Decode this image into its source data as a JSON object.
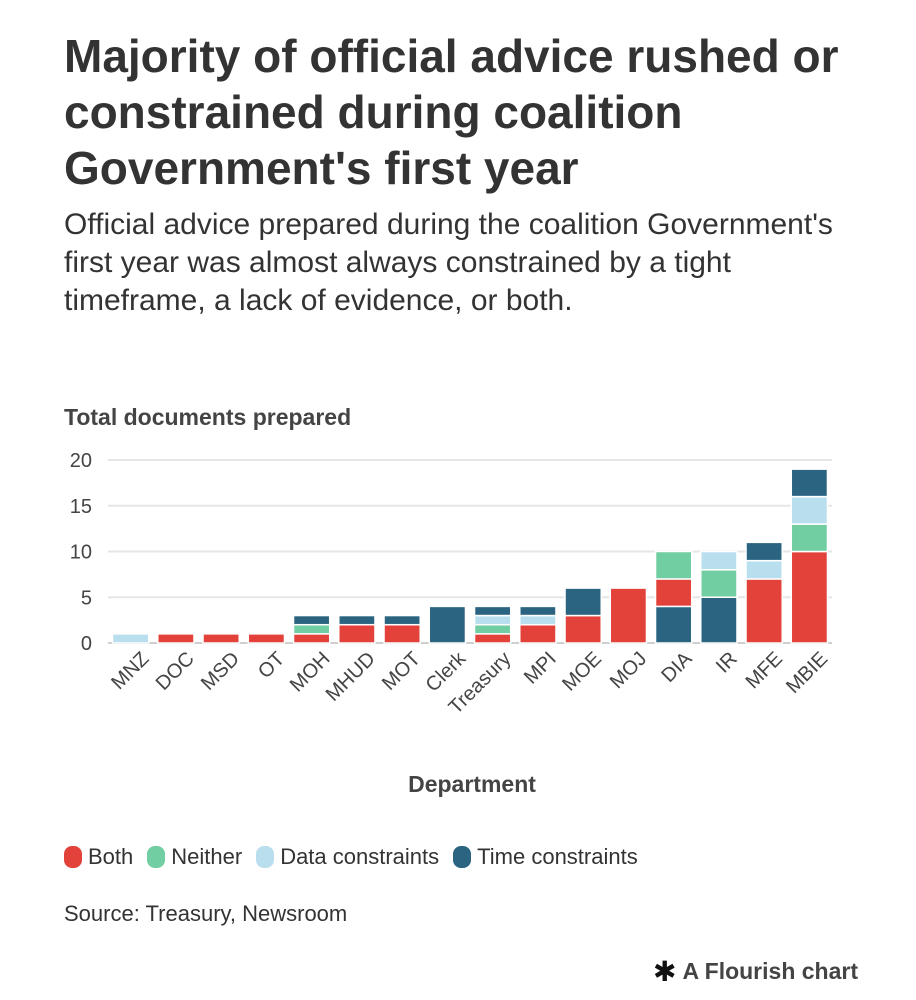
{
  "title": "Majority of official advice rushed or constrained during coalition Government's first year",
  "subtitle": "Official advice prepared during the coalition Government's first year was almost always constrained by a tight timeframe, a lack of evidence, or both.",
  "source": "Source: Treasury, Newsroom",
  "credit": {
    "icon": "flourish-asterisk-icon",
    "text": "A Flourish chart"
  },
  "colors": {
    "Both": "#e3423a",
    "Neither": "#70cea2",
    "Data constraints": "#b9dfef",
    "Time constraints": "#2b6481"
  },
  "chart_data": {
    "type": "bar",
    "stacked": true,
    "title": "Majority of official advice rushed or constrained during coalition Government's first year",
    "ylabel": "Total documents prepared",
    "xlabel": "Department",
    "ylim": [
      0,
      20
    ],
    "yticks": [
      0,
      5,
      10,
      15,
      20
    ],
    "grid": true,
    "legend": "bottom",
    "categories": [
      "MNZ",
      "DOC",
      "MSD",
      "OT",
      "MOH",
      "MHUD",
      "MOT",
      "Clerk",
      "Treasury",
      "MPI",
      "MOE",
      "MOJ",
      "DIA",
      "IR",
      "MFE",
      "MBIE"
    ],
    "series": [
      {
        "name": "Both",
        "values": [
          0,
          1,
          1,
          1,
          1,
          2,
          2,
          0,
          1,
          2,
          3,
          6,
          3,
          0,
          7,
          10
        ]
      },
      {
        "name": "Neither",
        "values": [
          0,
          0,
          0,
          0,
          1,
          0,
          0,
          0,
          1,
          0,
          0,
          0,
          3,
          3,
          0,
          3
        ]
      },
      {
        "name": "Data constraints",
        "values": [
          1,
          0,
          0,
          0,
          0,
          0,
          0,
          0,
          1,
          1,
          0,
          0,
          0,
          2,
          2,
          3
        ]
      },
      {
        "name": "Time constraints",
        "values": [
          0,
          0,
          0,
          0,
          1,
          1,
          1,
          4,
          1,
          1,
          3,
          0,
          4,
          5,
          2,
          3
        ]
      }
    ],
    "stack_order": [
      [
        "Data constraints"
      ],
      [
        "Both"
      ],
      [
        "Both"
      ],
      [
        "Both"
      ],
      [
        "Both",
        "Neither",
        "Time constraints"
      ],
      [
        "Both",
        "Time constraints"
      ],
      [
        "Both",
        "Time constraints"
      ],
      [
        "Time constraints"
      ],
      [
        "Both",
        "Neither",
        "Data constraints",
        "Time constraints"
      ],
      [
        "Both",
        "Data constraints",
        "Time constraints"
      ],
      [
        "Both",
        "Time constraints"
      ],
      [
        "Both"
      ],
      [
        "Time constraints",
        "Both",
        "Neither"
      ],
      [
        "Time constraints",
        "Neither",
        "Data constraints",
        "Both"
      ],
      [
        "Both",
        "Data constraints",
        "Time constraints"
      ],
      [
        "Both",
        "Neither",
        "Data constraints",
        "Time constraints"
      ]
    ]
  }
}
